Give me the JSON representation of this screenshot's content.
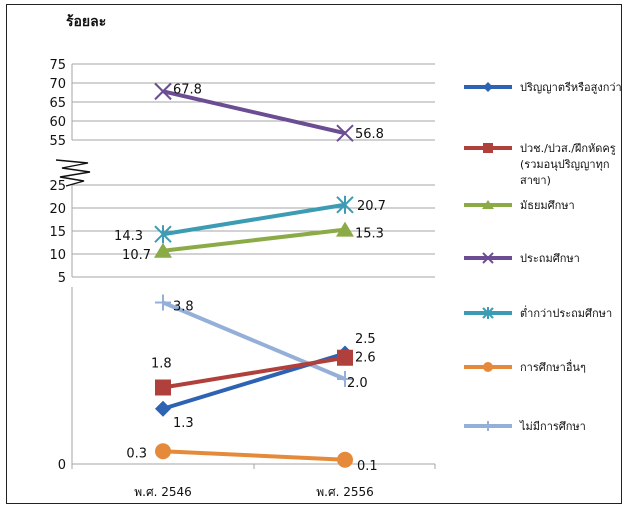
{
  "chart_data": {
    "type": "line",
    "ylabel": "ร้อยละ",
    "categories": [
      "พ.ศ. 2546",
      "พ.ศ. 2556"
    ],
    "y_ticks_top": [
      "75",
      "70",
      "65",
      "60",
      "55"
    ],
    "y_ticks_mid": [
      "25",
      "20",
      "15",
      "10",
      "5"
    ],
    "y_ticks_bottom": [
      "0"
    ],
    "axis_break": true,
    "grid": true,
    "legend_position": "right",
    "series": [
      {
        "name": "ปริญญาตรีหรือสูงกว่า",
        "values": [
          1.3,
          2.6
        ],
        "labels": [
          "1.3",
          "2.6"
        ],
        "color": "#2e62b2",
        "marker": "diamond"
      },
      {
        "name": "ปวช./ปวส./ฝึกหัดครู (รวมอนุปริญญาทุกสาขา)",
        "name_lines": [
          "ปวช./ปวส./ฝึกหัดครู",
          "(รวมอนุปริญญาทุก",
          "สาขา)"
        ],
        "values": [
          1.8,
          2.5
        ],
        "labels": [
          "1.8",
          "2.5"
        ],
        "color": "#b0403c",
        "marker": "square"
      },
      {
        "name": "มัธยมศึกษา",
        "values": [
          10.7,
          15.3
        ],
        "labels": [
          "10.7",
          "15.3"
        ],
        "color": "#8bab46",
        "marker": "triangle"
      },
      {
        "name": "ประถมศึกษา",
        "values": [
          67.8,
          56.8
        ],
        "labels": [
          "67.8",
          "56.8"
        ],
        "color": "#6c4c93",
        "marker": "x"
      },
      {
        "name": "ต่ำกว่าประถมศึกษา",
        "values": [
          14.3,
          20.7
        ],
        "labels": [
          "14.3",
          "20.7"
        ],
        "color": "#3b9cb3",
        "marker": "star"
      },
      {
        "name": "การศึกษาอื่นๆ",
        "values": [
          0.3,
          0.1
        ],
        "labels": [
          "0.3",
          "0.1"
        ],
        "color": "#e58a3b",
        "marker": "circle"
      },
      {
        "name": "ไม่มีการศึกษา",
        "values": [
          3.8,
          2.0
        ],
        "labels": [
          "3.8",
          "2.0"
        ],
        "color": "#95b0d8",
        "marker": "plus"
      }
    ]
  }
}
